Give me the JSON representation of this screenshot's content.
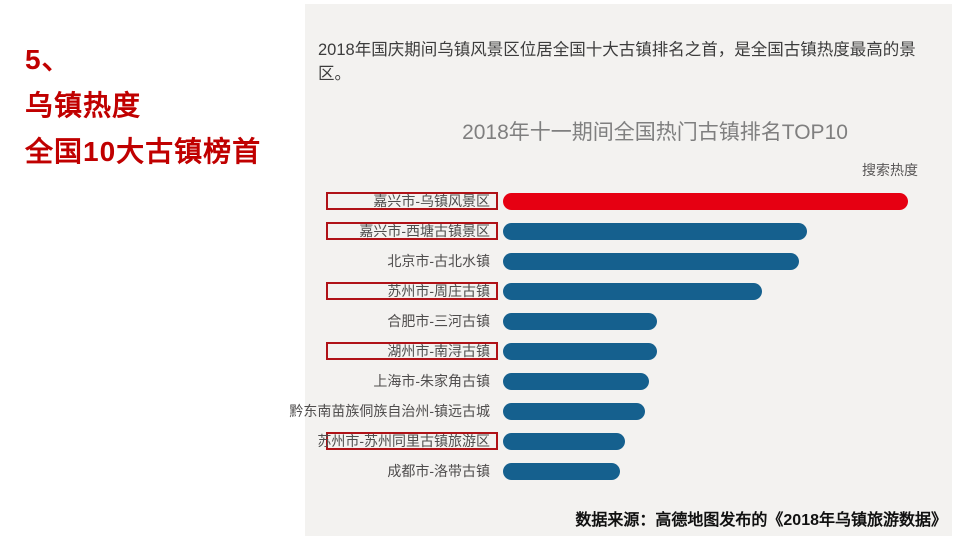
{
  "slide": {
    "left_panel": {
      "number": "5、",
      "title_line1": "乌镇热度",
      "title_line2": "全国10大古镇榜首"
    },
    "description": "2018年国庆期间乌镇风景区位居全国十大古镇排名之首，是全国古镇热度最高的景区。",
    "source": "数据来源：高德地图发布的《2018年乌镇旅游数据》"
  },
  "chart_data": {
    "type": "bar",
    "orientation": "horizontal",
    "title": "2018年十一期间全国热门古镇排名TOP10",
    "legend_label": "搜索热度",
    "categories": [
      "嘉兴市-乌镇风景区",
      "嘉兴市-西塘古镇景区",
      "北京市-古北水镇",
      "苏州市-周庄古镇",
      "合肥市-三河古镇",
      "湖州市-南浔古镇",
      "上海市-朱家角古镇",
      "黔东南苗族侗族自治州-镇远古城",
      "苏州市-苏州同里古镇旅游区",
      "成都市-洛带古镇"
    ],
    "values": [
      100,
      75,
      73,
      64,
      38,
      38,
      36,
      35,
      30,
      29
    ],
    "value_scale": "relative search heat, longest bar = 100 (no numeric axis shown)",
    "highlight_index": 0,
    "boxed_indices": [
      0,
      1,
      3,
      5,
      8
    ],
    "axis": "none",
    "grid": false,
    "legend_position": "top-right",
    "colors": {
      "highlight_bar": "#e60012",
      "bar": "#15608e",
      "box_border": "#b01217",
      "accent_text": "#c00000",
      "panel_bg": "#f3f2f0"
    }
  }
}
